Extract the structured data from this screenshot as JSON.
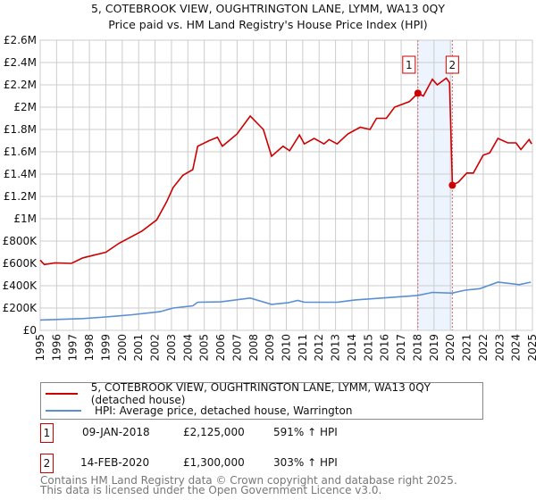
{
  "chart_data": {
    "type": "line",
    "title": "5, COTEBROOK VIEW, OUGHTRINGTON LANE, LYMM, WA13 0QY",
    "subtitle": "Price paid vs. HM Land Registry's House Price Index (HPI)",
    "xlabel": "",
    "ylabel": "",
    "xlim": [
      1995,
      2025
    ],
    "ylim": [
      0,
      2600000
    ],
    "grid": true,
    "x_ticks": [
      "1995",
      "1996",
      "1997",
      "1998",
      "1999",
      "2000",
      "2001",
      "2002",
      "2003",
      "2004",
      "2005",
      "2006",
      "2007",
      "2008",
      "2009",
      "2010",
      "2011",
      "2012",
      "2013",
      "2014",
      "2015",
      "2016",
      "2017",
      "2018",
      "2019",
      "2020",
      "2021",
      "2022",
      "2023",
      "2024",
      "2025"
    ],
    "y_ticks": [
      {
        "value": 0,
        "label": "£0"
      },
      {
        "value": 200000,
        "label": "£200K"
      },
      {
        "value": 400000,
        "label": "£400K"
      },
      {
        "value": 600000,
        "label": "£600K"
      },
      {
        "value": 800000,
        "label": "£800K"
      },
      {
        "value": 1000000,
        "label": "£1M"
      },
      {
        "value": 1200000,
        "label": "£1.2M"
      },
      {
        "value": 1400000,
        "label": "£1.4M"
      },
      {
        "value": 1600000,
        "label": "£1.6M"
      },
      {
        "value": 1800000,
        "label": "£1.8M"
      },
      {
        "value": 2000000,
        "label": "£2M"
      },
      {
        "value": 2200000,
        "label": "£2.2M"
      },
      {
        "value": 2400000,
        "label": "£2.4M"
      },
      {
        "value": 2600000,
        "label": "£2.6M"
      }
    ],
    "series": [
      {
        "name": "5, COTEBROOK VIEW, OUGHTRINGTON LANE, LYMM, WA13 0QY (detached house)",
        "color": "#cc0000",
        "x": [
          1995.0,
          1995.25,
          1995.9,
          1996.9,
          1997.6,
          1999.0,
          1999.8,
          2001.2,
          2002.1,
          2002.7,
          2003.1,
          2003.7,
          2004.3,
          2004.6,
          2005.3,
          2005.8,
          2006.1,
          2007.0,
          2007.8,
          2008.6,
          2009.1,
          2009.8,
          2010.2,
          2010.8,
          2011.1,
          2011.7,
          2012.3,
          2012.6,
          2013.1,
          2013.75,
          2014.5,
          2015.1,
          2015.5,
          2016.1,
          2016.6,
          2017.5,
          2018.02,
          2018.35,
          2018.9,
          2019.2,
          2019.75,
          2019.95,
          2020.12,
          2020.5,
          2021.0,
          2021.4,
          2022.0,
          2022.4,
          2022.9,
          2023.5,
          2024.0,
          2024.3,
          2024.8,
          2024.95
        ],
        "y": [
          630000,
          590000,
          605000,
          600000,
          650000,
          700000,
          780000,
          890000,
          990000,
          1150000,
          1280000,
          1390000,
          1440000,
          1650000,
          1700000,
          1730000,
          1650000,
          1760000,
          1920000,
          1800000,
          1560000,
          1650000,
          1610000,
          1750000,
          1670000,
          1720000,
          1670000,
          1710000,
          1670000,
          1760000,
          1820000,
          1800000,
          1900000,
          1900000,
          2000000,
          2050000,
          2125000,
          2100000,
          2250000,
          2200000,
          2260000,
          2220000,
          1300000,
          1330000,
          1410000,
          1410000,
          1570000,
          1590000,
          1720000,
          1680000,
          1680000,
          1620000,
          1710000,
          1670000
        ]
      },
      {
        "name": "HPI: Average price, detached house, Warrington",
        "color": "#5b8fd4",
        "x": [
          1995.0,
          1997.6,
          1999.0,
          2000.6,
          2002.3,
          2003.1,
          2004.3,
          2004.6,
          2006.0,
          2007.8,
          2009.1,
          2010.1,
          2010.7,
          2011.1,
          2013.1,
          2014.2,
          2016.2,
          2018.0,
          2018.9,
          2020.1,
          2020.9,
          2021.8,
          2022.9,
          2024.2,
          2024.9
        ],
        "y": [
          93000,
          106000,
          120000,
          140000,
          167000,
          200000,
          220000,
          252000,
          255000,
          290000,
          233000,
          247000,
          268000,
          252000,
          252000,
          273000,
          294000,
          313000,
          340000,
          334000,
          360000,
          374000,
          432000,
          410000,
          432000
        ]
      }
    ],
    "sales": [
      {
        "label": "1",
        "x": 2018.02,
        "y": 2125000,
        "date": "09-JAN-2018",
        "price": "£2,125,000",
        "hpi": "591% ↑ HPI"
      },
      {
        "label": "2",
        "x": 2020.12,
        "y": 1300000,
        "date": "14-FEB-2020",
        "price": "£1,300,000",
        "hpi": "303% ↑ HPI"
      }
    ],
    "highlight_range": [
      2018.02,
      2020.12
    ],
    "legend_placement": "below"
  },
  "footer": {
    "line1": "Contains HM Land Registry data © Crown copyright and database right 2025.",
    "line2": "This data is licensed under the Open Government Licence v3.0."
  }
}
